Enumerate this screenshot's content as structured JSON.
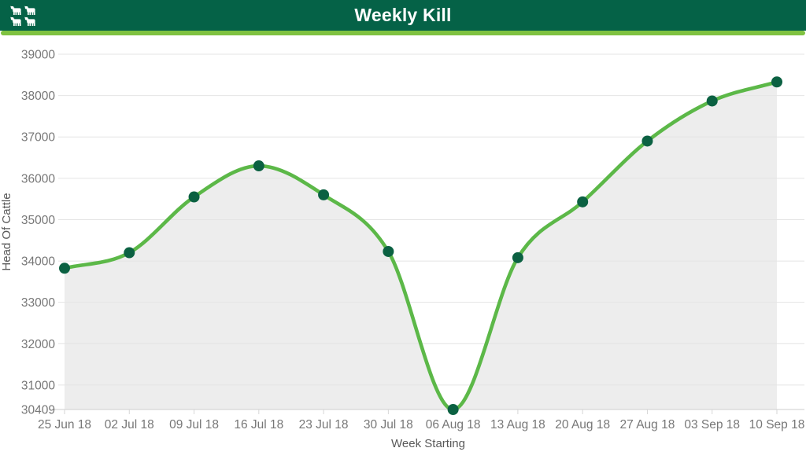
{
  "header": {
    "title": "Weekly Kill",
    "icon": "cattle-icon",
    "bg_color": "#056247",
    "stripe_color": "#7fc241"
  },
  "chart_data": {
    "type": "area",
    "title": "Weekly Kill",
    "xlabel": "Week Starting",
    "ylabel": "Head Of Cattle",
    "categories": [
      "25 Jun 18",
      "02 Jul 18",
      "09 Jul 18",
      "16 Jul 18",
      "23 Jul 18",
      "30 Jul 18",
      "06 Aug 18",
      "13 Aug 18",
      "20 Aug 18",
      "27 Aug 18",
      "03 Sep 18",
      "10 Sep 18"
    ],
    "values": [
      33825,
      34200,
      35550,
      36300,
      35600,
      34230,
      30409,
      34080,
      35430,
      36900,
      37870,
      38330
    ],
    "y_ticks": [
      39000,
      38000,
      37000,
      36000,
      35000,
      34000,
      33000,
      32000,
      31000,
      30409
    ],
    "ylim": [
      30409,
      39000
    ],
    "grid": "horizontal",
    "legend": "none",
    "smooth": true,
    "colors": {
      "line": "#5cb848",
      "marker": "#0b6142",
      "fill": "#ededed",
      "grid": "#e4e4e4",
      "axis_line": "#d6d6d6",
      "tick_label": "#777777",
      "axis_title": "#595959"
    }
  }
}
